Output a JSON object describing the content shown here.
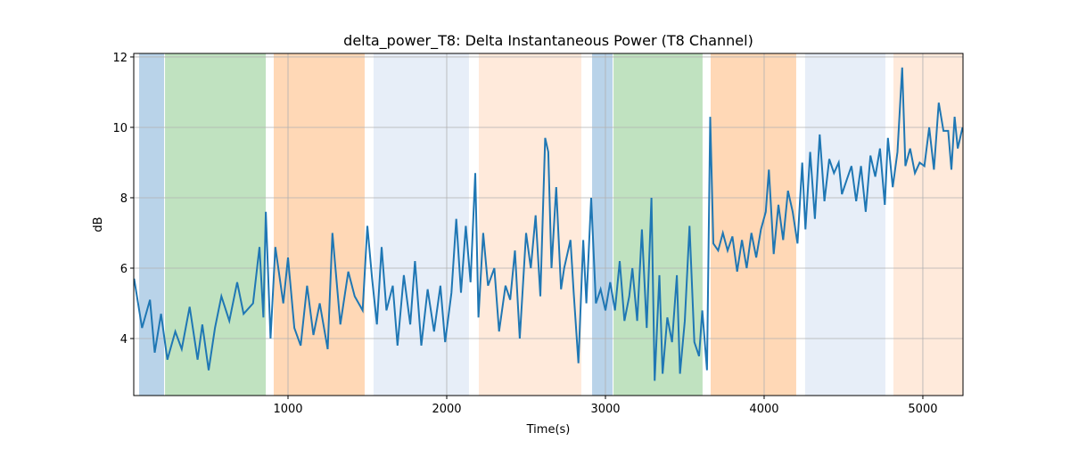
{
  "chart_data": {
    "type": "line",
    "title": "delta_power_T8: Delta Instantaneous Power (T8 Channel)",
    "x_label": "Time(s)",
    "y_label": "dB",
    "color": "#1f77b4",
    "x": [
      30,
      80,
      130,
      160,
      200,
      240,
      290,
      330,
      380,
      430,
      460,
      500,
      540,
      580,
      630,
      680,
      720,
      780,
      820,
      845,
      860,
      890,
      920,
      970,
      1000,
      1040,
      1080,
      1120,
      1160,
      1200,
      1250,
      1280,
      1330,
      1380,
      1420,
      1470,
      1500,
      1530,
      1560,
      1590,
      1620,
      1660,
      1690,
      1730,
      1770,
      1800,
      1840,
      1880,
      1920,
      1960,
      1990,
      2030,
      2060,
      2090,
      2120,
      2150,
      2180,
      2200,
      2230,
      2260,
      2300,
      2330,
      2370,
      2400,
      2430,
      2460,
      2500,
      2530,
      2560,
      2590,
      2620,
      2640,
      2660,
      2690,
      2720,
      2740,
      2780,
      2800,
      2830,
      2860,
      2880,
      2910,
      2940,
      2970,
      3000,
      3030,
      3060,
      3090,
      3120,
      3150,
      3170,
      3200,
      3230,
      3260,
      3290,
      3310,
      3340,
      3360,
      3390,
      3420,
      3450,
      3470,
      3500,
      3530,
      3560,
      3590,
      3610,
      3640,
      3660,
      3680,
      3710,
      3740,
      3770,
      3800,
      3830,
      3860,
      3890,
      3920,
      3950,
      3980,
      4010,
      4030,
      4060,
      4090,
      4120,
      4150,
      4180,
      4210,
      4240,
      4260,
      4290,
      4320,
      4350,
      4380,
      4410,
      4440,
      4470,
      4490,
      4520,
      4550,
      4580,
      4610,
      4640,
      4670,
      4700,
      4730,
      4760,
      4780,
      4810,
      4840,
      4870,
      4890,
      4920,
      4950,
      4980,
      5010,
      5040,
      5070,
      5100,
      5130,
      5160,
      5180,
      5200,
      5220,
      5250
    ],
    "values": [
      5.7,
      4.3,
      5.1,
      3.6,
      4.7,
      3.4,
      4.2,
      3.7,
      4.9,
      3.4,
      4.4,
      3.1,
      4.3,
      5.2,
      4.5,
      5.6,
      4.7,
      5.0,
      6.6,
      4.6,
      7.6,
      4.0,
      6.6,
      5.0,
      6.3,
      4.3,
      3.8,
      5.5,
      4.1,
      5.0,
      3.7,
      7.0,
      4.4,
      5.9,
      5.2,
      4.8,
      7.2,
      5.7,
      4.4,
      6.6,
      4.8,
      5.5,
      3.8,
      5.8,
      4.4,
      6.2,
      3.8,
      5.4,
      4.2,
      5.5,
      3.9,
      5.3,
      7.4,
      5.3,
      7.2,
      5.6,
      8.7,
      4.6,
      7.0,
      5.5,
      6.0,
      4.2,
      5.5,
      5.1,
      6.5,
      4.0,
      7.0,
      6.0,
      7.5,
      5.2,
      9.7,
      9.3,
      6.0,
      8.3,
      5.4,
      6.0,
      6.8,
      5.3,
      3.3,
      6.8,
      5.0,
      8.0,
      5.0,
      5.4,
      4.8,
      5.6,
      4.8,
      6.2,
      4.5,
      5.2,
      6.0,
      4.5,
      7.1,
      4.3,
      8.0,
      2.8,
      5.8,
      3.0,
      4.6,
      3.9,
      5.8,
      3.0,
      4.5,
      7.2,
      3.9,
      3.5,
      4.8,
      3.1,
      10.3,
      6.7,
      6.5,
      7.0,
      6.5,
      6.9,
      5.9,
      6.8,
      6.0,
      7.0,
      6.3,
      7.1,
      7.6,
      8.8,
      6.4,
      7.8,
      6.8,
      8.2,
      7.6,
      6.7,
      9.0,
      7.1,
      9.3,
      7.4,
      9.8,
      7.9,
      9.1,
      8.7,
      9.0,
      8.1,
      8.5,
      8.9,
      7.9,
      8.9,
      7.6,
      9.2,
      8.6,
      9.4,
      7.8,
      9.7,
      8.3,
      9.3,
      11.7,
      8.9,
      9.4,
      8.7,
      9.0,
      8.9,
      10.0,
      8.8,
      10.7,
      9.9,
      9.9,
      8.8,
      10.3,
      9.4,
      10.0
    ],
    "spans": [
      {
        "x0": 62,
        "x1": 219,
        "color": "#b9d3e9"
      },
      {
        "x0": 225,
        "x1": 860,
        "color": "#c0e2c0"
      },
      {
        "x0": 910,
        "x1": 1483,
        "color": "#ffd8b6"
      },
      {
        "x0": 1539,
        "x1": 2140,
        "color": "#e7eef8"
      },
      {
        "x0": 2202,
        "x1": 2848,
        "color": "#ffeadb"
      },
      {
        "x0": 2916,
        "x1": 3045,
        "color": "#b9d3e9"
      },
      {
        "x0": 3051,
        "x1": 3612,
        "color": "#c0e2c0"
      },
      {
        "x0": 3663,
        "x1": 4202,
        "color": "#ffd8b6"
      },
      {
        "x0": 4258,
        "x1": 4764,
        "color": "#e7eef8"
      },
      {
        "x0": 4815,
        "x1": 5253,
        "color": "#ffeadb"
      }
    ],
    "xlim": [
      28,
      5253
    ],
    "ylim": [
      2.38,
      12.1
    ],
    "xticks": [
      1000,
      2000,
      3000,
      4000,
      5000
    ],
    "yticks": [
      4,
      6,
      8,
      10,
      12
    ],
    "grid": true
  }
}
